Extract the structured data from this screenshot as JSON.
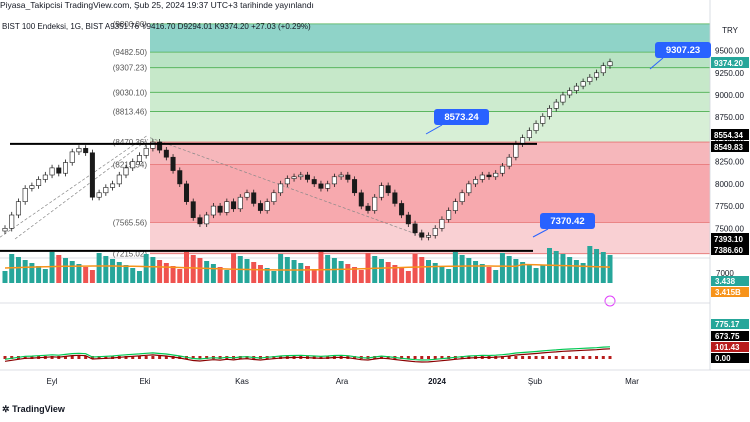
{
  "header": {
    "publisher": "Piyasa_Takipcisi",
    "line": "Piyasa_Takipcisi TradingView.com, Şub 25, 2024 19:37 UTC+3 tarihinde yayınlandı",
    "symbol_line": "BIST 100 Endeksi, 1G, BIST",
    "ohlc_line": "A9351.76 Y9416.70 D9294.01 K9374.20 +27.03 (+0.29%)"
  },
  "currency_label": "TRY",
  "footer_logo": "TradingView",
  "chart_data": {
    "type": "candlestick",
    "title": "BIST 100 Endeksi, 1G, BIST",
    "x_ticks": [
      "Eyl",
      "Eki",
      "Kas",
      "Ara",
      "2024",
      "Şub",
      "Mar"
    ],
    "y_ticks": [
      9500,
      9250,
      9000,
      8750,
      8500,
      8250,
      8000,
      7750,
      7500
    ],
    "ylim": [
      7200,
      9900
    ],
    "fib_levels": [
      {
        "label": "(9800.00)",
        "value": 9800
      },
      {
        "label": "(9482.50)",
        "value": 9482.5
      },
      {
        "label": "(9307.23)",
        "value": 9307.23
      },
      {
        "label": "(9030.10)",
        "value": 9030.1
      },
      {
        "label": "(8813.46)",
        "value": 8813.46
      },
      {
        "label": "(8470.36)",
        "value": 8470.36
      },
      {
        "label": "(8219.54)",
        "value": 8219.54
      },
      {
        "label": "(7565.56)",
        "value": 7565.56
      },
      {
        "label": "(7215.02)",
        "value": 7215.02
      }
    ],
    "callouts": [
      "9307.23",
      "8573.24",
      "7370.42"
    ],
    "price_badges": {
      "last": "9374.20",
      "level_high": "8554.34",
      "level_high2": "8549.83",
      "level_low": "7393.10",
      "level_low2": "7386.60",
      "target": "9500.00"
    },
    "horizontal_lines": [
      8573.24,
      7370.42
    ],
    "close_path": [
      7500,
      7650,
      7800,
      7950,
      7980,
      8050,
      8100,
      8180,
      8120,
      8240,
      8360,
      8400,
      8350,
      7850,
      7900,
      7960,
      8000,
      8100,
      8180,
      8250,
      8320,
      8400,
      8470,
      8380,
      8300,
      8150,
      8000,
      7800,
      7620,
      7550,
      7650,
      7750,
      7680,
      7800,
      7720,
      7850,
      7900,
      7780,
      7700,
      7800,
      7900,
      8000,
      8060,
      8080,
      8100,
      8050,
      8000,
      7950,
      8000,
      8080,
      8100,
      8050,
      7900,
      7750,
      7700,
      7850,
      7980,
      7900,
      7780,
      7650,
      7550,
      7450,
      7400,
      7420,
      7500,
      7600,
      7700,
      7800,
      7900,
      8000,
      8050,
      8100,
      8080,
      8120,
      8200,
      8300,
      8450,
      8520,
      8600,
      8680,
      8760,
      8850,
      8920,
      9000,
      9050,
      9100,
      9150,
      9200,
      9250,
      9330,
      9374
    ],
    "volume_ticks": [
      "7000",
      "3.438",
      "3.415B"
    ],
    "macd_labels": [
      "775.17",
      "673.75",
      "101.43",
      "0.00"
    ]
  }
}
